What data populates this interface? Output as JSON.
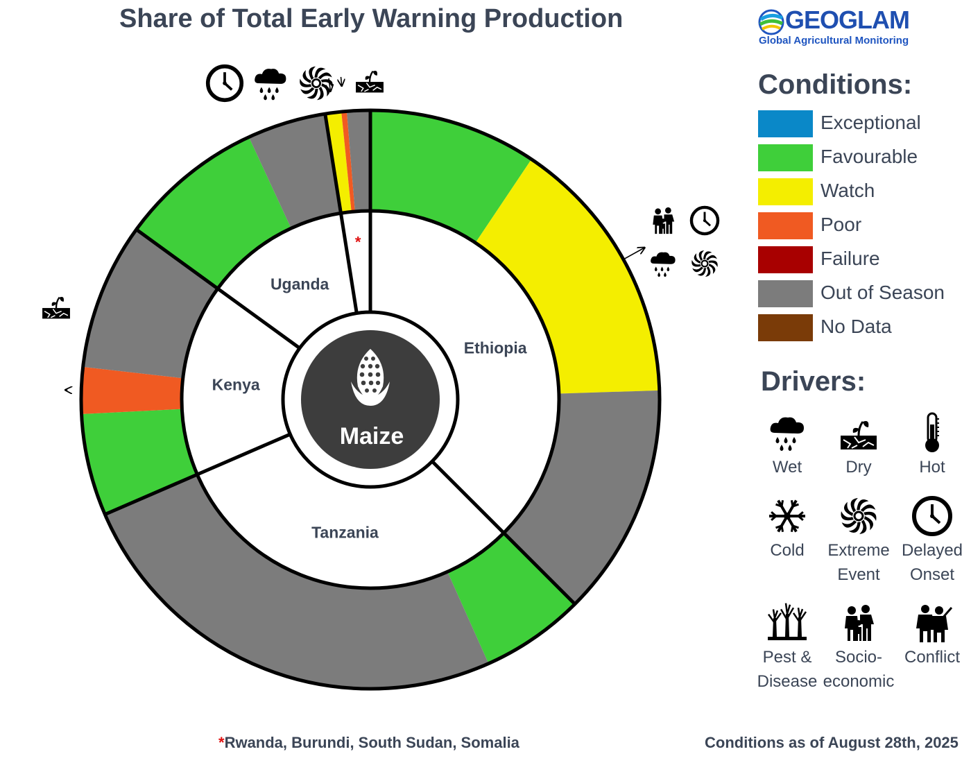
{
  "title": "Share of Total Early Warning Production",
  "logo": {
    "name": "GEOGLAM",
    "subtitle": "Global Agricultural Monitoring"
  },
  "conditions_title": "Conditions:",
  "drivers_title": "Drivers:",
  "colors": {
    "Exceptional": "#0a88c8",
    "Favourable": "#3fcf3a",
    "Watch": "#f4ee00",
    "Poor": "#f05a22",
    "Failure": "#a80000",
    "Out of Season": "#7c7c7c",
    "No Data": "#7a3b08"
  },
  "conditions": [
    {
      "label": "Exceptional",
      "color": "#0a88c8"
    },
    {
      "label": "Favourable",
      "color": "#3fcf3a"
    },
    {
      "label": "Watch",
      "color": "#f4ee00"
    },
    {
      "label": "Poor",
      "color": "#f05a22"
    },
    {
      "label": "Failure",
      "color": "#a80000"
    },
    {
      "label": "Out of Season",
      "color": "#7c7c7c"
    },
    {
      "label": "No Data",
      "color": "#7a3b08"
    }
  ],
  "drivers": [
    {
      "label": "Wet",
      "icon": "rain-cloud-icon"
    },
    {
      "label": "Dry",
      "icon": "dry-sprout-icon"
    },
    {
      "label": "Hot",
      "icon": "thermometer-icon"
    },
    {
      "label": "Cold",
      "icon": "snowflake-icon"
    },
    {
      "label": "Extreme Event",
      "icon": "cyclone-icon"
    },
    {
      "label": "Delayed Onset",
      "icon": "clock-icon"
    },
    {
      "label": "Pest & Disease",
      "icon": "dead-trees-icon"
    },
    {
      "label": "Socio-economic",
      "icon": "family-icon"
    },
    {
      "label": "Conflict",
      "icon": "soldiers-icon"
    }
  ],
  "center_label": "Maize",
  "footnote": {
    "star": "*",
    "text": "Rwanda, Burundi, South Sudan, Somalia"
  },
  "as_of": "Conditions as of August 28th, 2025",
  "chart_data": {
    "type": "pie",
    "title": "Share of Total Early Warning Production",
    "inner_ring": [
      {
        "country": "Ethiopia",
        "share": 37.5
      },
      {
        "country": "Tanzania",
        "share": 31.0
      },
      {
        "country": "Kenya",
        "share": 16.5
      },
      {
        "country": "Uganda",
        "share": 12.5
      },
      {
        "country": "*",
        "share": 2.5
      }
    ],
    "outer_ring": [
      {
        "country": "Ethiopia",
        "condition": "Favourable",
        "share": 9.4
      },
      {
        "country": "Ethiopia",
        "condition": "Watch",
        "share": 15.1,
        "drivers": [
          "Socio-economic",
          "Delayed Onset",
          "Wet",
          "Extreme Event"
        ]
      },
      {
        "country": "Ethiopia",
        "condition": "Out of Season",
        "share": 13.0
      },
      {
        "country": "Tanzania",
        "condition": "Favourable",
        "share": 5.8
      },
      {
        "country": "Tanzania",
        "condition": "Out of Season",
        "share": 25.2
      },
      {
        "country": "Kenya",
        "condition": "Favourable",
        "share": 5.7
      },
      {
        "country": "Kenya",
        "condition": "Poor",
        "share": 2.6,
        "drivers": [
          "Dry"
        ]
      },
      {
        "country": "Kenya",
        "condition": "Out of Season",
        "share": 8.2
      },
      {
        "country": "Uganda",
        "condition": "Favourable",
        "share": 8.1
      },
      {
        "country": "Uganda",
        "condition": "Out of Season",
        "share": 4.4
      },
      {
        "country": "*",
        "condition": "Watch",
        "share": 0.9,
        "drivers": [
          "Delayed Onset",
          "Wet",
          "Extreme Event"
        ]
      },
      {
        "country": "*",
        "condition": "Poor",
        "share": 0.3,
        "drivers": [
          "Dry"
        ]
      },
      {
        "country": "*",
        "condition": "Out of Season",
        "share": 1.3
      }
    ]
  }
}
